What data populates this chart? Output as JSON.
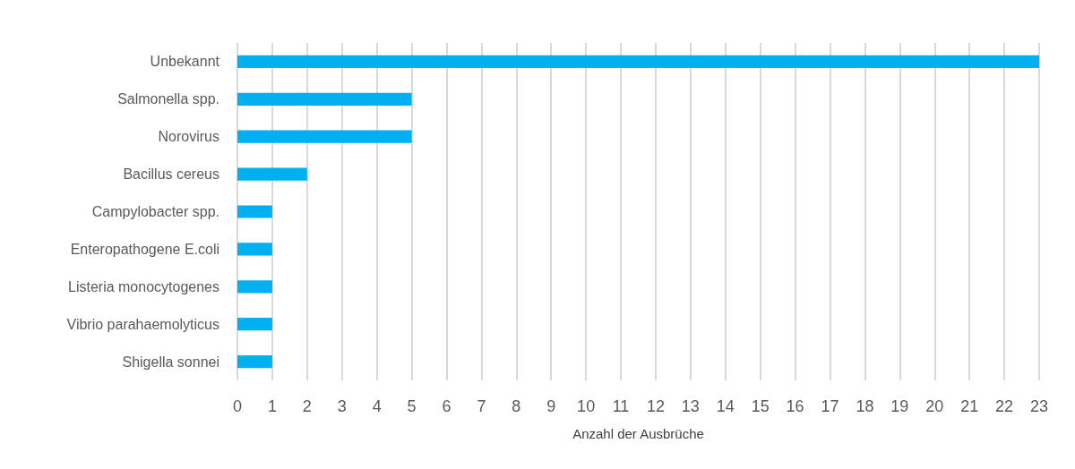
{
  "chart_data": {
    "type": "bar",
    "orientation": "horizontal",
    "xlabel": "Anzahl der Ausbrüche",
    "categories": [
      "Unbekannt",
      "Salmonella spp.",
      "Norovirus",
      "Bacillus cereus",
      "Campylobacter spp.",
      "Enteropathogene E.coli",
      "Listeria monocytogenes",
      "Vibrio parahaemolyticus",
      "Shigella sonnei"
    ],
    "values": [
      23,
      5,
      5,
      2,
      1,
      1,
      1,
      1,
      1
    ],
    "color": "#00b0f0",
    "xlim": [
      0,
      23
    ],
    "xticks": [
      0,
      1,
      2,
      3,
      4,
      5,
      6,
      7,
      8,
      9,
      10,
      11,
      12,
      13,
      14,
      15,
      16,
      17,
      18,
      19,
      20,
      21,
      22,
      23
    ],
    "grid": "x"
  }
}
